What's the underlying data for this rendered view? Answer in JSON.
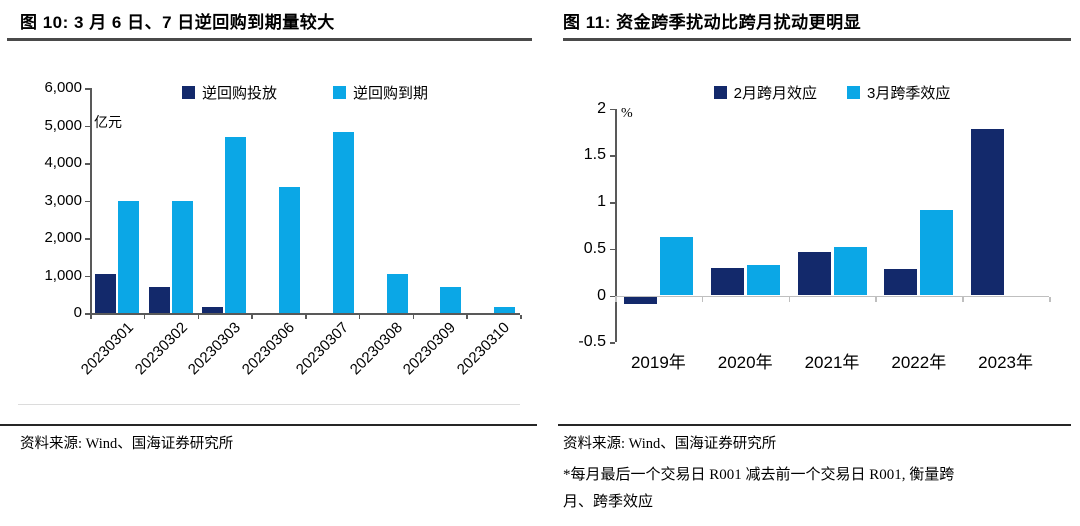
{
  "colors": {
    "navy": "#13296B",
    "sky": "#0BA7E6",
    "title_rule": "#4a4a4a",
    "footer_rule": "#262626",
    "axis_dark": "#595959",
    "axis_light": "#bfbfbf",
    "faint_border": "#dcdcdc"
  },
  "figures": [
    {
      "title": "图 10: 3 月 6 日、7 日逆回购到期量较大",
      "source": "资料来源: Wind、国海证券研究所"
    },
    {
      "title": "图 11: 资金跨季扰动比跨月扰动更明显",
      "source": "资料来源: Wind、国海证券研究所",
      "note": "*每月最后一个交易日 R001 减去前一个交易日 R001, 衡量跨\n月、跨季效应"
    }
  ],
  "chart_data": [
    {
      "type": "bar",
      "title": "图 10: 3 月 6 日、7 日逆回购到期量较大",
      "unit": "亿元",
      "categories": [
        "20230301",
        "20230302",
        "20230303",
        "20230306",
        "20230307",
        "20230308",
        "20230309",
        "20230310"
      ],
      "series": [
        {
          "name": "逆回购投放",
          "color_key": "navy",
          "values": [
            1050,
            700,
            160,
            0,
            0,
            0,
            0,
            0
          ]
        },
        {
          "name": "逆回购到期",
          "color_key": "sky",
          "values": [
            3000,
            3000,
            4700,
            3350,
            4820,
            1050,
            700,
            160
          ]
        }
      ],
      "ylim": [
        0,
        6000
      ],
      "ytick_step": 1000,
      "ytick_labels": [
        "0",
        "1,000",
        "2,000",
        "3,000",
        "4,000",
        "5,000",
        "6,000"
      ],
      "legend_position": "top",
      "grid": false,
      "category_labels_rotated": true
    },
    {
      "type": "bar",
      "title": "图 11: 资金跨季扰动比跨月扰动更明显",
      "unit": "%",
      "categories": [
        "2019年",
        "2020年",
        "2021年",
        "2022年",
        "2023年"
      ],
      "series": [
        {
          "name": "2月跨月效应",
          "color_key": "navy",
          "values": [
            -0.08,
            0.29,
            0.47,
            0.28,
            1.78
          ]
        },
        {
          "name": "3月跨季效应",
          "color_key": "sky",
          "values": [
            0.63,
            0.33,
            0.52,
            0.91,
            null
          ]
        }
      ],
      "ylim": [
        -0.5,
        2
      ],
      "ytick_step": 0.5,
      "ytick_labels": [
        "-0.5",
        "0",
        "0.5",
        "1",
        "1.5",
        "2"
      ],
      "legend_position": "top",
      "grid": false,
      "category_labels_rotated": false
    }
  ]
}
